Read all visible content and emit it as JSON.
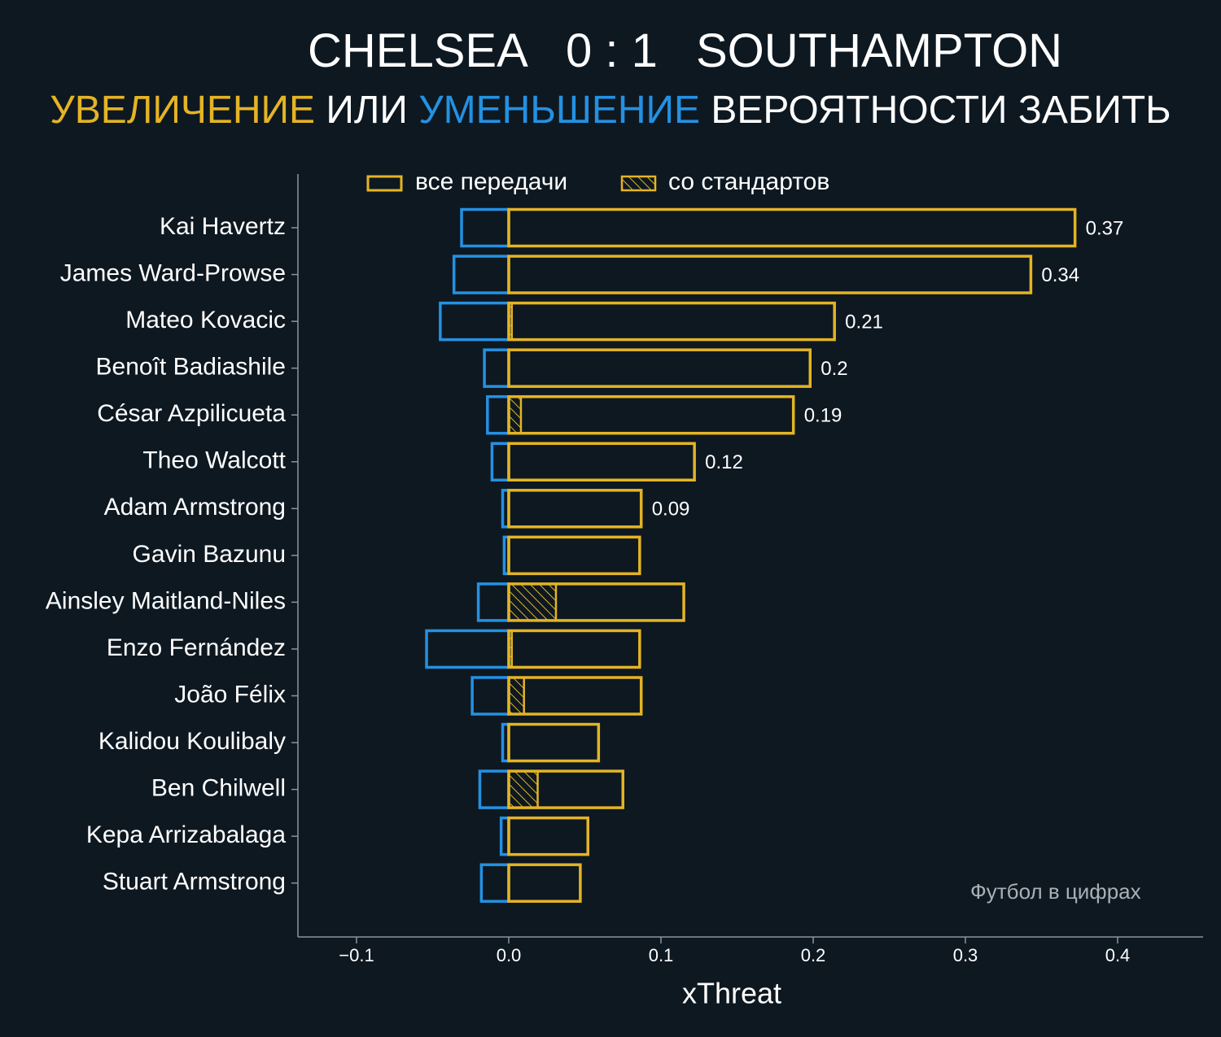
{
  "title": {
    "home": "CHELSEA",
    "score": "0 : 1",
    "away": "SOUTHAMPTON"
  },
  "subtitle": {
    "part1": "УВЕЛИЧЕНИЕ",
    "part2": " ИЛИ ",
    "part3": "УМЕНЬШЕНИЕ",
    "part4": " ВЕРОЯТНОСТИ ЗАБИТЬ"
  },
  "colors": {
    "background": "#0e1821",
    "increase": "#e4b424",
    "decrease": "#2491e2",
    "axis": "#8a949c",
    "text": "#ffffff"
  },
  "watermark": "Футбол в цифрах",
  "chart_data": {
    "type": "bar",
    "orientation": "horizontal",
    "xlabel": "xThreat",
    "xlim": [
      -0.14,
      0.455
    ],
    "xticks": [
      -0.1,
      0.0,
      0.1,
      0.2,
      0.3,
      0.4
    ],
    "xtick_labels": [
      "−0.1",
      "0.0",
      "0.1",
      "0.2",
      "0.3",
      "0.4"
    ],
    "legend": {
      "placement": "top-center",
      "items": [
        {
          "label": "все передачи",
          "style": "outline"
        },
        {
          "label": "со стандартов",
          "style": "hatched"
        }
      ]
    },
    "categories": [
      "Kai Havertz",
      "James Ward-Prowse",
      "Mateo Kovacic",
      "Benoît Badiashile",
      "César Azpilicueta",
      "Theo Walcott",
      "Adam Armstrong",
      "Gavin Bazunu",
      "Ainsley Maitland-Niles",
      "Enzo Fernández",
      "João Félix",
      "Kalidou Koulibaly",
      "Ben Chilwell",
      "Kepa Arrizabalaga",
      "Stuart Armstrong"
    ],
    "series": [
      {
        "name": "все передачи",
        "values": [
          0.372,
          0.343,
          0.214,
          0.198,
          0.187,
          0.122,
          0.087,
          0.086,
          0.115,
          0.086,
          0.087,
          0.059,
          0.075,
          0.052,
          0.047
        ]
      },
      {
        "name": "со стандартов",
        "values": [
          0.0,
          0.0,
          0.002,
          0.0,
          0.008,
          0.0,
          0.0,
          0.0,
          0.031,
          0.002,
          0.01,
          0.0,
          0.019,
          0.0,
          0.0
        ]
      },
      {
        "values": [
          -0.031,
          -0.036,
          -0.045,
          -0.016,
          -0.014,
          -0.011,
          -0.004,
          -0.003,
          -0.02,
          -0.054,
          -0.024,
          -0.004,
          -0.019,
          -0.005,
          -0.018
        ]
      }
    ],
    "data_labels": [
      "0.37",
      "0.34",
      "0.21",
      "0.2",
      "0.19",
      "0.12",
      "0.09",
      "",
      "",
      "",
      "",
      "",
      "",
      "",
      ""
    ]
  }
}
